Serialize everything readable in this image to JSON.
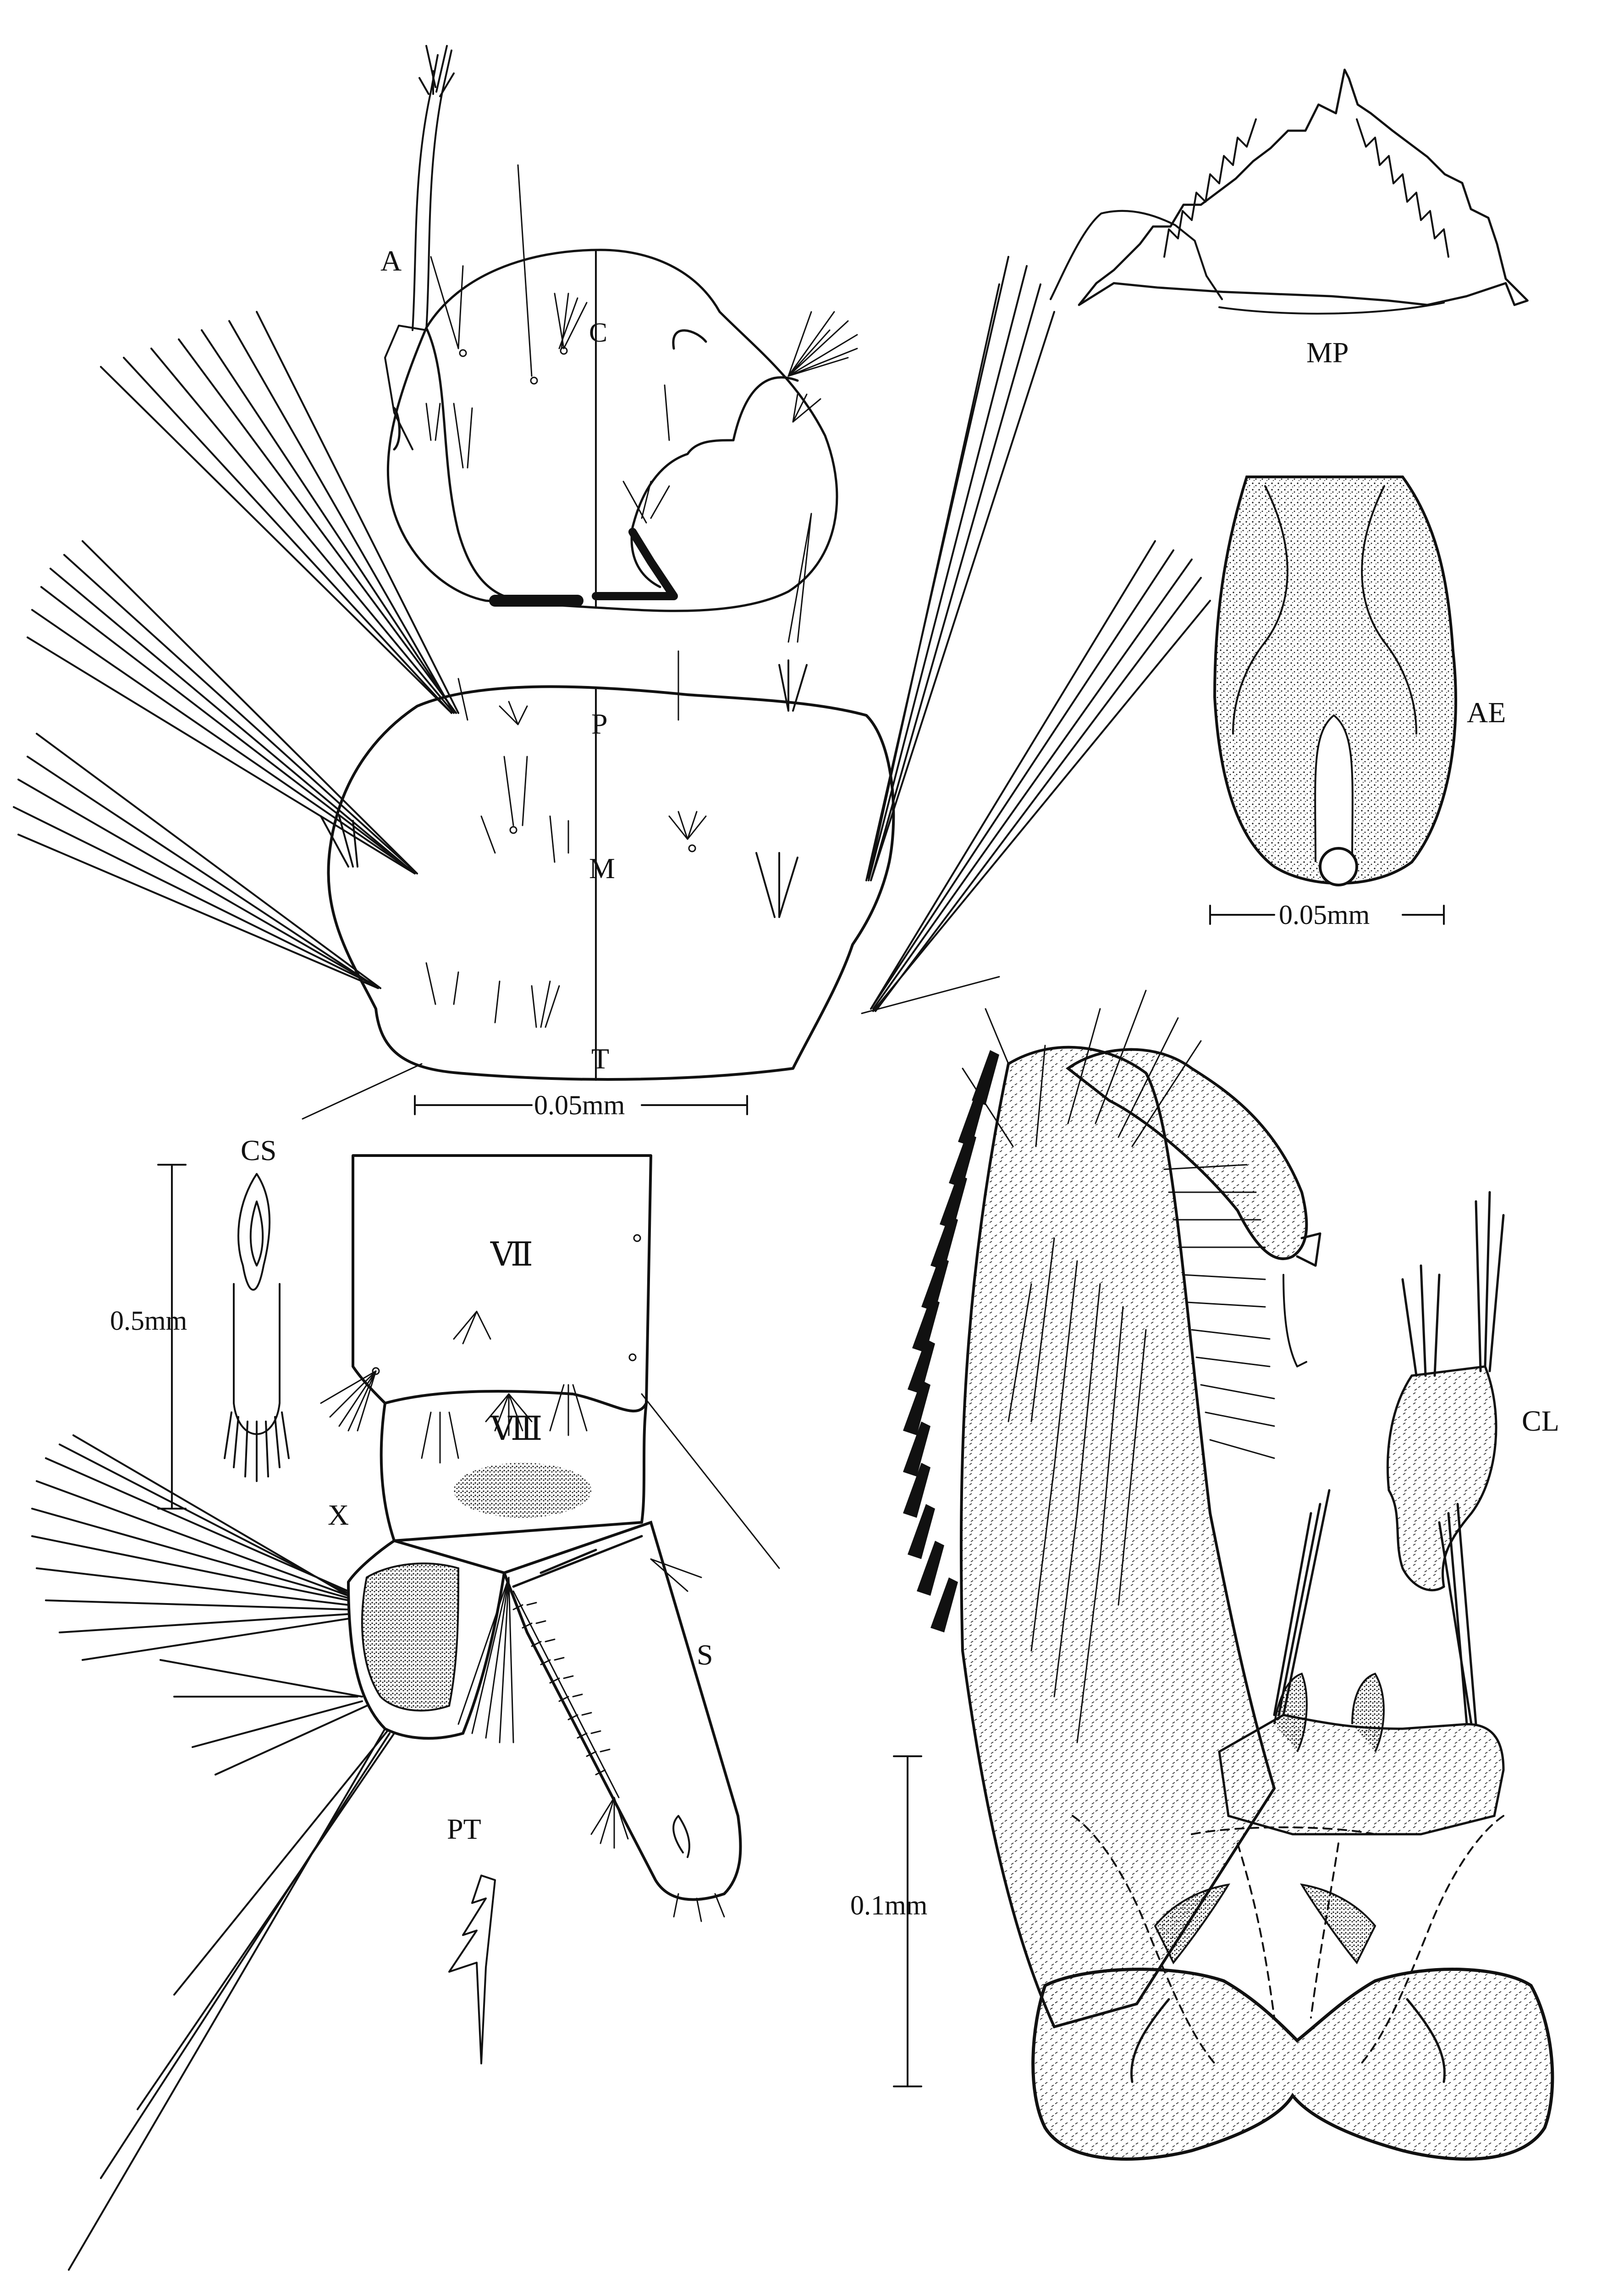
{
  "plate": {
    "labels": {
      "A": "A",
      "C": "C",
      "P": "P",
      "M": "M",
      "T": "T",
      "MP": "MP",
      "AE": "AE",
      "CS": "CS",
      "VII": "Ⅶ",
      "VIII": "Ⅷ",
      "X": "X",
      "S": "S",
      "PT": "PT",
      "CL": "CL"
    },
    "scale_bars": {
      "head_thorax": "0.05mm",
      "aedeagus": "0.05mm",
      "comb_scale": "0.5mm",
      "genitalia": "0.1mm"
    }
  },
  "colors": {
    "ink": "#111111",
    "paper": "#ffffff"
  }
}
